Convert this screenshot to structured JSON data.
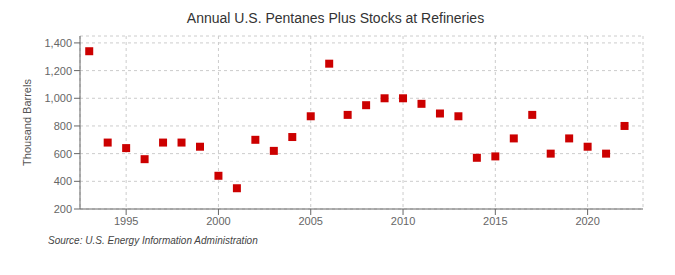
{
  "chart_data": {
    "type": "scatter",
    "title": "Annual U.S. Pentanes Plus Stocks at Refineries",
    "ylabel": "Thousand Barrels",
    "source": "Source: U.S. Energy Information Administration",
    "x": [
      1993,
      1994,
      1995,
      1996,
      1997,
      1998,
      1999,
      2000,
      2001,
      2002,
      2003,
      2004,
      2005,
      2006,
      2007,
      2008,
      2009,
      2010,
      2011,
      2012,
      2013,
      2014,
      2015,
      2016,
      2017,
      2018,
      2019,
      2020,
      2021,
      2022
    ],
    "values": [
      1340,
      680,
      640,
      560,
      680,
      680,
      650,
      440,
      350,
      700,
      620,
      720,
      870,
      1250,
      880,
      950,
      1000,
      1000,
      960,
      890,
      870,
      570,
      580,
      710,
      880,
      600,
      710,
      650,
      600,
      800
    ],
    "color": "#cc0000",
    "marker": "square",
    "xlim": [
      1992.5,
      2023
    ],
    "ylim": [
      200,
      1450
    ],
    "xticks": [
      1995,
      2000,
      2005,
      2010,
      2015,
      2020
    ],
    "yticks": [
      200,
      400,
      600,
      800,
      {
        "value": 1000,
        "label": "1,000"
      },
      {
        "value": 1200,
        "label": "1,200"
      },
      {
        "value": 1400,
        "label": "1,400"
      }
    ],
    "grid": true
  }
}
